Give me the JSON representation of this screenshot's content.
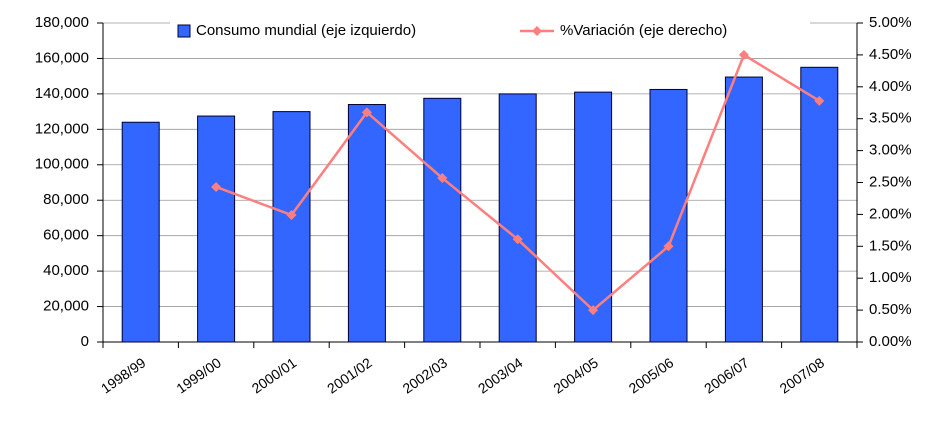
{
  "chart_data": {
    "type": "bar-line",
    "categories": [
      "1998/99",
      "1999/00",
      "2000/01",
      "2001/02",
      "2002/03",
      "2003/04",
      "2004/05",
      "2005/06",
      "2006/07",
      "2007/08"
    ],
    "series": [
      {
        "name": "Consumo mundial (eje izquierdo)",
        "type": "bar",
        "color": "#3366ff",
        "values": [
          124000,
          127500,
          130000,
          134000,
          137500,
          140000,
          141000,
          142500,
          149500,
          155000
        ]
      },
      {
        "name": "%Variación (eje derecho)",
        "type": "line",
        "axis": "y2",
        "color": "#ff7f7f",
        "values": [
          null,
          2.43,
          1.99,
          3.6,
          2.57,
          1.61,
          0.5,
          1.5,
          4.5,
          3.78
        ]
      }
    ],
    "ylim": [
      0,
      180000
    ],
    "yticks": [
      0,
      {
        "value": 20000,
        "label": "20,000"
      },
      {
        "value": 40000,
        "label": "40,000"
      },
      {
        "value": 60000,
        "label": "60,000"
      },
      {
        "value": 80000,
        "label": "80,000"
      },
      {
        "value": 100000,
        "label": "100,000"
      },
      {
        "value": 120000,
        "label": "120,000"
      },
      {
        "value": 140000,
        "label": "140,000"
      },
      {
        "value": 160000,
        "label": "160,000"
      },
      {
        "value": 180000,
        "label": "180,000"
      }
    ],
    "y2lim": [
      0,
      5
    ],
    "y2ticks": [
      {
        "value": 0,
        "label": "0.00%"
      },
      {
        "value": 0.5,
        "label": "0.50%"
      },
      {
        "value": 1,
        "label": "1.00%"
      },
      {
        "value": 1.5,
        "label": "1.50%"
      },
      {
        "value": 2,
        "label": "2.00%"
      },
      {
        "value": 2.5,
        "label": "2.50%"
      },
      {
        "value": 3,
        "label": "3.00%"
      },
      {
        "value": 3.5,
        "label": "3.50%"
      },
      {
        "value": 4,
        "label": "4.00%"
      },
      {
        "value": 4.5,
        "label": "4.50%"
      },
      {
        "value": 5,
        "label": "5.00%"
      }
    ],
    "grid": true,
    "legend": "top"
  }
}
